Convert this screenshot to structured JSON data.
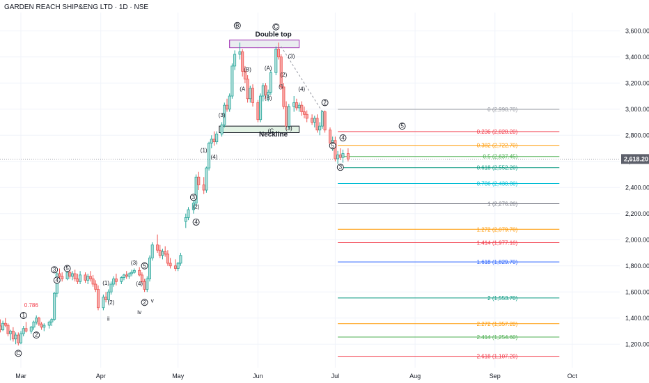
{
  "header": {
    "title": "GARDEN REACH SHIP&ENG LTD · 1D · NSE"
  },
  "chart_data": {
    "type": "candlestick",
    "y_ticks": [
      "3,600.00",
      "3,400.00",
      "3,200.00",
      "3,000.00",
      "2,800.00",
      "2,600.00",
      "2,400.00",
      "2,200.00",
      "2,000.00",
      "1,800.00",
      "1,600.00",
      "1,400.00",
      "1,200.00"
    ],
    "y_tick_values": [
      3600,
      3400,
      3200,
      3000,
      2800,
      2600,
      2400,
      2200,
      2000,
      1800,
      1600,
      1400,
      1200
    ],
    "y_range": [
      1020,
      3740
    ],
    "x_ticks": [
      {
        "label": "Mar",
        "day": 0
      },
      {
        "label": "Apr",
        "day": 31
      },
      {
        "label": "May",
        "day": 61
      },
      {
        "label": "Jun",
        "day": 92
      },
      {
        "label": "Jul",
        "day": 122
      },
      {
        "label": "Aug",
        "day": 153
      },
      {
        "label": "Sep",
        "day": 184
      },
      {
        "label": "Oct",
        "day": 214
      }
    ],
    "last_price": {
      "label": "2,618.20",
      "value": 2618.2,
      "color": "#5d606b"
    },
    "candles": [
      {
        "d": -8,
        "o": 1340,
        "h": 1390,
        "l": 1290,
        "c": 1310
      },
      {
        "d": -7,
        "o": 1310,
        "h": 1380,
        "l": 1300,
        "c": 1360
      },
      {
        "d": -6,
        "o": 1360,
        "h": 1400,
        "l": 1330,
        "c": 1345
      },
      {
        "d": -5,
        "o": 1345,
        "h": 1360,
        "l": 1260,
        "c": 1280
      },
      {
        "d": -4,
        "o": 1280,
        "h": 1310,
        "l": 1230,
        "c": 1300
      },
      {
        "d": -3,
        "o": 1300,
        "h": 1330,
        "l": 1220,
        "c": 1240
      },
      {
        "d": -2,
        "o": 1240,
        "h": 1290,
        "l": 1200,
        "c": 1270
      },
      {
        "d": -1,
        "o": 1270,
        "h": 1290,
        "l": 1190,
        "c": 1210
      },
      {
        "d": 0,
        "o": 1210,
        "h": 1300,
        "l": 1200,
        "c": 1280
      },
      {
        "d": 1,
        "o": 1280,
        "h": 1340,
        "l": 1260,
        "c": 1320
      },
      {
        "d": 2,
        "o": 1320,
        "h": 1370,
        "l": 1290,
        "c": 1300
      },
      {
        "d": 4,
        "o": 1300,
        "h": 1340,
        "l": 1280,
        "c": 1330
      },
      {
        "d": 5,
        "o": 1330,
        "h": 1380,
        "l": 1310,
        "c": 1370
      },
      {
        "d": 6,
        "o": 1370,
        "h": 1420,
        "l": 1350,
        "c": 1400
      },
      {
        "d": 7,
        "o": 1400,
        "h": 1410,
        "l": 1340,
        "c": 1355
      },
      {
        "d": 8,
        "o": 1355,
        "h": 1370,
        "l": 1310,
        "c": 1330
      },
      {
        "d": 9,
        "o": 1330,
        "h": 1360,
        "l": 1300,
        "c": 1345
      },
      {
        "d": 11,
        "o": 1345,
        "h": 1380,
        "l": 1320,
        "c": 1370
      },
      {
        "d": 12,
        "o": 1370,
        "h": 1400,
        "l": 1340,
        "c": 1390
      },
      {
        "d": 13,
        "o": 1390,
        "h": 1600,
        "l": 1380,
        "c": 1590
      },
      {
        "d": 14,
        "o": 1590,
        "h": 1750,
        "l": 1560,
        "c": 1740
      },
      {
        "d": 15,
        "o": 1740,
        "h": 1780,
        "l": 1690,
        "c": 1720
      },
      {
        "d": 16,
        "o": 1720,
        "h": 1750,
        "l": 1680,
        "c": 1700
      },
      {
        "d": 18,
        "o": 1700,
        "h": 1760,
        "l": 1690,
        "c": 1750
      },
      {
        "d": 19,
        "o": 1750,
        "h": 1790,
        "l": 1700,
        "c": 1720
      },
      {
        "d": 20,
        "o": 1720,
        "h": 1760,
        "l": 1690,
        "c": 1740
      },
      {
        "d": 21,
        "o": 1740,
        "h": 1770,
        "l": 1680,
        "c": 1700
      },
      {
        "d": 22,
        "o": 1700,
        "h": 1740,
        "l": 1660,
        "c": 1680
      },
      {
        "d": 23,
        "o": 1680,
        "h": 1760,
        "l": 1660,
        "c": 1730
      },
      {
        "d": 25,
        "o": 1730,
        "h": 1750,
        "l": 1670,
        "c": 1690
      },
      {
        "d": 26,
        "o": 1690,
        "h": 1740,
        "l": 1660,
        "c": 1720
      },
      {
        "d": 27,
        "o": 1720,
        "h": 1760,
        "l": 1680,
        "c": 1700
      },
      {
        "d": 28,
        "o": 1700,
        "h": 1730,
        "l": 1640,
        "c": 1660
      },
      {
        "d": 29,
        "o": 1660,
        "h": 1690,
        "l": 1600,
        "c": 1620
      },
      {
        "d": 30,
        "o": 1620,
        "h": 1650,
        "l": 1460,
        "c": 1480
      },
      {
        "d": 32,
        "o": 1480,
        "h": 1580,
        "l": 1460,
        "c": 1560
      },
      {
        "d": 33,
        "o": 1560,
        "h": 1600,
        "l": 1520,
        "c": 1540
      },
      {
        "d": 34,
        "o": 1540,
        "h": 1620,
        "l": 1520,
        "c": 1600
      },
      {
        "d": 35,
        "o": 1600,
        "h": 1680,
        "l": 1580,
        "c": 1660
      },
      {
        "d": 36,
        "o": 1660,
        "h": 1720,
        "l": 1640,
        "c": 1700
      },
      {
        "d": 37,
        "o": 1700,
        "h": 1740,
        "l": 1650,
        "c": 1680
      },
      {
        "d": 39,
        "o": 1680,
        "h": 1720,
        "l": 1660,
        "c": 1710
      },
      {
        "d": 40,
        "o": 1710,
        "h": 1740,
        "l": 1690,
        "c": 1730
      },
      {
        "d": 41,
        "o": 1730,
        "h": 1760,
        "l": 1700,
        "c": 1720
      },
      {
        "d": 42,
        "o": 1720,
        "h": 1750,
        "l": 1700,
        "c": 1740
      },
      {
        "d": 43,
        "o": 1740,
        "h": 1770,
        "l": 1720,
        "c": 1750
      },
      {
        "d": 44,
        "o": 1750,
        "h": 1780,
        "l": 1740,
        "c": 1765
      },
      {
        "d": 46,
        "o": 1765,
        "h": 1790,
        "l": 1720,
        "c": 1730
      },
      {
        "d": 47,
        "o": 1730,
        "h": 1750,
        "l": 1660,
        "c": 1680
      },
      {
        "d": 48,
        "o": 1680,
        "h": 1700,
        "l": 1600,
        "c": 1620
      },
      {
        "d": 49,
        "o": 1620,
        "h": 1720,
        "l": 1600,
        "c": 1700
      },
      {
        "d": 50,
        "o": 1700,
        "h": 1880,
        "l": 1680,
        "c": 1860
      },
      {
        "d": 51,
        "o": 1860,
        "h": 1980,
        "l": 1840,
        "c": 1960
      },
      {
        "d": 53,
        "o": 1960,
        "h": 2040,
        "l": 1900,
        "c": 1920
      },
      {
        "d": 54,
        "o": 1920,
        "h": 1960,
        "l": 1860,
        "c": 1880
      },
      {
        "d": 55,
        "o": 1880,
        "h": 1930,
        "l": 1850,
        "c": 1910
      },
      {
        "d": 56,
        "o": 1910,
        "h": 1950,
        "l": 1870,
        "c": 1890
      },
      {
        "d": 57,
        "o": 1890,
        "h": 1920,
        "l": 1800,
        "c": 1820
      },
      {
        "d": 58,
        "o": 1820,
        "h": 1860,
        "l": 1780,
        "c": 1800
      },
      {
        "d": 60,
        "o": 1800,
        "h": 1850,
        "l": 1760,
        "c": 1780
      },
      {
        "d": 61,
        "o": 1780,
        "h": 1830,
        "l": 1760,
        "c": 1820
      },
      {
        "d": 62,
        "o": 1820,
        "h": 1900,
        "l": 1800,
        "c": 1880
      },
      {
        "d": 64,
        "o": 2140,
        "h": 2200,
        "l": 2090,
        "c": 2170
      },
      {
        "d": 65,
        "o": 2170,
        "h": 2250,
        "l": 2150,
        "c": 2230
      },
      {
        "d": 67,
        "o": 2230,
        "h": 2300,
        "l": 2200,
        "c": 2280
      },
      {
        "d": 68,
        "o": 2280,
        "h": 2500,
        "l": 2260,
        "c": 2480
      },
      {
        "d": 69,
        "o": 2480,
        "h": 2520,
        "l": 2380,
        "c": 2420
      },
      {
        "d": 71,
        "o": 2420,
        "h": 2480,
        "l": 2350,
        "c": 2380
      },
      {
        "d": 72,
        "o": 2380,
        "h": 2560,
        "l": 2360,
        "c": 2550
      },
      {
        "d": 73,
        "o": 2550,
        "h": 2750,
        "l": 2530,
        "c": 2740
      },
      {
        "d": 74,
        "o": 2740,
        "h": 2800,
        "l": 2700,
        "c": 2770
      },
      {
        "d": 75,
        "o": 2770,
        "h": 2830,
        "l": 2720,
        "c": 2750
      },
      {
        "d": 76,
        "o": 2750,
        "h": 2830,
        "l": 2730,
        "c": 2810
      },
      {
        "d": 78,
        "o": 2810,
        "h": 2900,
        "l": 2790,
        "c": 2880
      },
      {
        "d": 79,
        "o": 2880,
        "h": 3050,
        "l": 2860,
        "c": 3030
      },
      {
        "d": 80,
        "o": 3030,
        "h": 3080,
        "l": 2980,
        "c": 3000
      },
      {
        "d": 81,
        "o": 3000,
        "h": 3120,
        "l": 2980,
        "c": 3100
      },
      {
        "d": 82,
        "o": 3100,
        "h": 3350,
        "l": 3080,
        "c": 3330
      },
      {
        "d": 83,
        "o": 3330,
        "h": 3450,
        "l": 3300,
        "c": 3420
      },
      {
        "d": 85,
        "o": 3420,
        "h": 3510,
        "l": 3380,
        "c": 3440
      },
      {
        "d": 86,
        "o": 3440,
        "h": 3460,
        "l": 3250,
        "c": 3290
      },
      {
        "d": 87,
        "o": 3290,
        "h": 3330,
        "l": 3200,
        "c": 3230
      },
      {
        "d": 88,
        "o": 3230,
        "h": 3260,
        "l": 3050,
        "c": 3080
      },
      {
        "d": 89,
        "o": 3080,
        "h": 3180,
        "l": 3050,
        "c": 3160
      },
      {
        "d": 90,
        "o": 3160,
        "h": 3190,
        "l": 3020,
        "c": 3050
      },
      {
        "d": 92,
        "o": 3050,
        "h": 3070,
        "l": 2900,
        "c": 2920
      },
      {
        "d": 93,
        "o": 2920,
        "h": 3120,
        "l": 2900,
        "c": 3100
      },
      {
        "d": 94,
        "o": 3100,
        "h": 3200,
        "l": 3060,
        "c": 3180
      },
      {
        "d": 95,
        "o": 3180,
        "h": 3200,
        "l": 3080,
        "c": 3110
      },
      {
        "d": 96,
        "o": 3110,
        "h": 3150,
        "l": 3060,
        "c": 3130
      },
      {
        "d": 97,
        "o": 3130,
        "h": 3300,
        "l": 3110,
        "c": 3280
      },
      {
        "d": 99,
        "o": 3280,
        "h": 3480,
        "l": 3260,
        "c": 3460
      },
      {
        "d": 100,
        "o": 3460,
        "h": 3510,
        "l": 3380,
        "c": 3400
      },
      {
        "d": 101,
        "o": 3400,
        "h": 3420,
        "l": 3150,
        "c": 3170
      },
      {
        "d": 102,
        "o": 3170,
        "h": 3200,
        "l": 3000,
        "c": 3020
      },
      {
        "d": 103,
        "o": 3020,
        "h": 3060,
        "l": 2840,
        "c": 2870
      },
      {
        "d": 104,
        "o": 2870,
        "h": 3040,
        "l": 2850,
        "c": 3020
      },
      {
        "d": 106,
        "o": 3020,
        "h": 3100,
        "l": 2980,
        "c": 3050
      },
      {
        "d": 107,
        "o": 3050,
        "h": 3080,
        "l": 2990,
        "c": 3010
      },
      {
        "d": 108,
        "o": 3010,
        "h": 3050,
        "l": 2980,
        "c": 3030
      },
      {
        "d": 109,
        "o": 3030,
        "h": 3060,
        "l": 2950,
        "c": 2980
      },
      {
        "d": 110,
        "o": 2980,
        "h": 3020,
        "l": 2930,
        "c": 2960
      },
      {
        "d": 111,
        "o": 2960,
        "h": 2990,
        "l": 2900,
        "c": 2930
      },
      {
        "d": 113,
        "o": 2930,
        "h": 2960,
        "l": 2880,
        "c": 2900
      },
      {
        "d": 114,
        "o": 2900,
        "h": 2950,
        "l": 2860,
        "c": 2930
      },
      {
        "d": 115,
        "o": 2930,
        "h": 2960,
        "l": 2820,
        "c": 2840
      },
      {
        "d": 116,
        "o": 2840,
        "h": 2900,
        "l": 2800,
        "c": 2870
      },
      {
        "d": 117,
        "o": 2870,
        "h": 2990,
        "l": 2850,
        "c": 2980
      },
      {
        "d": 118,
        "o": 2980,
        "h": 2990,
        "l": 2820,
        "c": 2840
      },
      {
        "d": 120,
        "o": 2840,
        "h": 2860,
        "l": 2720,
        "c": 2740
      },
      {
        "d": 121,
        "o": 2740,
        "h": 2790,
        "l": 2680,
        "c": 2760
      },
      {
        "d": 122,
        "o": 2760,
        "h": 2790,
        "l": 2600,
        "c": 2620
      },
      {
        "d": 123,
        "o": 2620,
        "h": 2680,
        "l": 2580,
        "c": 2650
      },
      {
        "d": 124,
        "o": 2650,
        "h": 2700,
        "l": 2610,
        "c": 2630
      },
      {
        "d": 125,
        "o": 2630,
        "h": 2690,
        "l": 2590,
        "c": 2660
      },
      {
        "d": 127,
        "o": 2660,
        "h": 2700,
        "l": 2600,
        "c": 2618
      }
    ],
    "fib_levels": [
      {
        "label": "0 (2,998.70)",
        "value": 2998.7,
        "color": "#9598a1"
      },
      {
        "label": "0.236 (2,828.20)",
        "value": 2828.2,
        "color": "#f23645"
      },
      {
        "label": "0.382 (2,722.70)",
        "value": 2722.7,
        "color": "#ff9800"
      },
      {
        "label": "0.5 (2,637.45)",
        "value": 2637.45,
        "color": "#4caf50"
      },
      {
        "label": "0.618 (2,552.20)",
        "value": 2552.2,
        "color": "#089981"
      },
      {
        "label": "0.786 (2,430.80)",
        "value": 2430.8,
        "color": "#00bcd4"
      },
      {
        "label": "1 (2,276.20)",
        "value": 2276.2,
        "color": "#787b86"
      },
      {
        "label": "1.272 (2,079.70)",
        "value": 2079.7,
        "color": "#ff9800"
      },
      {
        "label": "1.414 (1,977.10)",
        "value": 1977.1,
        "color": "#f23645"
      },
      {
        "label": "1.618 (1,829.70)",
        "value": 1829.7,
        "color": "#2962ff"
      },
      {
        "label": "2 (1,553.70)",
        "value": 1553.7,
        "color": "#089981"
      },
      {
        "label": "2.272 (1,357.20)",
        "value": 1357.2,
        "color": "#ff9800"
      },
      {
        "label": "2.414 (1,254.60)",
        "value": 1254.6,
        "color": "#4caf50"
      },
      {
        "label": "2.618 (1,107.20)",
        "value": 1107.2,
        "color": "#f23645"
      }
    ],
    "fib_start_day": 123,
    "fib_end_day": 209,
    "zones": [
      {
        "name": "double-top-zone",
        "d0": 81,
        "d1": 108,
        "v0": 3470,
        "v1": 3530,
        "stroke": "#9c27b0",
        "fill": "#e1e5ea"
      },
      {
        "name": "neckline-zone",
        "d0": 77,
        "d1": 108,
        "v0": 2820,
        "v1": 2870,
        "stroke": "#131722",
        "fill": "#d6ecd9"
      }
    ],
    "annotations": [
      {
        "text": "Double top",
        "d": 98,
        "v": 3555,
        "color": "#131722",
        "bold": true
      },
      {
        "text": "Neckline",
        "d": 98,
        "v": 2790,
        "color": "#131722",
        "bold": true
      },
      {
        "text": "0.786",
        "d": 4,
        "v": 1485,
        "color": "#f23645",
        "bold": false
      }
    ],
    "wave_circles": [
      {
        "t": "C",
        "d": -1,
        "v": 1130
      },
      {
        "t": "1",
        "d": 1,
        "v": 1420
      },
      {
        "t": "2",
        "d": 6,
        "v": 1270
      },
      {
        "t": "3",
        "d": 13,
        "v": 1770
      },
      {
        "t": "4",
        "d": 14,
        "v": 1690
      },
      {
        "t": "5",
        "d": 18,
        "v": 1780
      },
      {
        "t": "2",
        "d": 48,
        "v": 1520
      },
      {
        "t": "5",
        "d": 48,
        "v": 1800
      },
      {
        "t": "3",
        "d": 67,
        "v": 2325
      },
      {
        "t": "4",
        "d": 68,
        "v": 2135
      },
      {
        "t": "B",
        "d": 84,
        "v": 3640
      },
      {
        "t": "C",
        "d": 99,
        "v": 3630
      },
      {
        "t": "2",
        "d": 118,
        "v": 3050
      },
      {
        "t": "5",
        "d": 121,
        "v": 2720
      },
      {
        "t": "4",
        "d": 125,
        "v": 2780
      },
      {
        "t": "5",
        "d": 148,
        "v": 2870
      },
      {
        "t": "3",
        "d": 124,
        "v": 2555
      }
    ],
    "wave_labels": [
      {
        "t": "(1)",
        "d": 33,
        "v": 1655
      },
      {
        "t": "(2)",
        "d": 35,
        "v": 1505
      },
      {
        "t": "(3)",
        "d": 44,
        "v": 1810
      },
      {
        "t": "(4)",
        "d": 46,
        "v": 1650
      },
      {
        "t": "ii",
        "d": 34,
        "v": 1380,
        "size": 10
      },
      {
        "t": "iv",
        "d": 46,
        "v": 1430,
        "size": 10
      },
      {
        "t": "v",
        "d": 51,
        "v": 1520,
        "size": 10
      },
      {
        "t": "(2)",
        "d": 68,
        "v": 2240
      },
      {
        "t": "(1)",
        "d": 71,
        "v": 2670
      },
      {
        "t": "(4)",
        "d": 75,
        "v": 2620
      },
      {
        "t": "(3)",
        "d": 78,
        "v": 2940
      },
      {
        "t": "(B)",
        "d": 88,
        "v": 3290
      },
      {
        "t": "(A",
        "d": 86,
        "v": 3140
      },
      {
        "t": "(A)",
        "d": 96,
        "v": 3300
      },
      {
        "t": "(B)",
        "d": 96,
        "v": 3070
      },
      {
        "t": "(C",
        "d": 97,
        "v": 2820
      },
      {
        "t": "(1",
        "d": 101,
        "v": 3160
      },
      {
        "t": "(2)",
        "d": 102,
        "v": 3250
      },
      {
        "t": "(3)",
        "d": 105,
        "v": 3390
      },
      {
        "t": "(4)",
        "d": 109,
        "v": 3140
      },
      {
        "t": "(3)",
        "d": 104,
        "v": 2840
      }
    ],
    "dashed_line": {
      "d0": 101,
      "v0": 3480,
      "d1": 117,
      "v1": 2980,
      "color": "#9598a1"
    }
  }
}
